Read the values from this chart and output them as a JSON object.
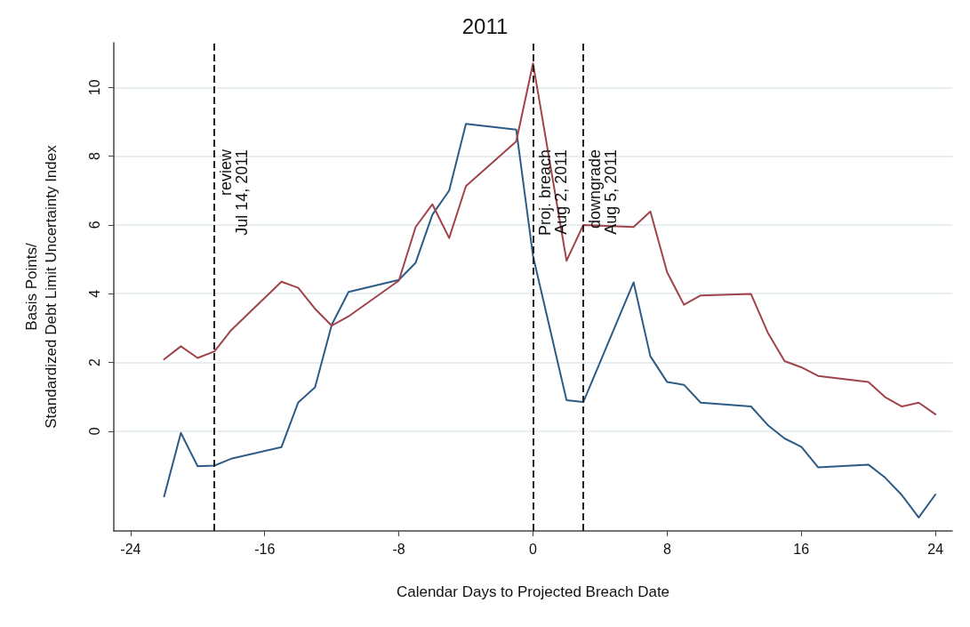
{
  "chart_data": {
    "type": "line",
    "title": "2011",
    "xlabel": "Calendar Days to Projected Breach Date",
    "ylabel": "Basis Points/\nStandardized Debt Limit Uncertainty Index",
    "x": [
      -22,
      -21,
      -20,
      -19,
      -18,
      -15,
      -14,
      -13,
      -12,
      -11,
      -8,
      -7,
      -6,
      -5,
      -4,
      -1,
      0,
      2,
      3,
      6,
      7,
      8,
      9,
      10,
      13,
      14,
      15,
      16,
      17,
      20,
      21,
      22,
      23,
      24
    ],
    "series": [
      {
        "color": "#2d5b86",
        "values": [
          -1.9,
          -0.05,
          -1.02,
          -1.0,
          -0.8,
          -0.46,
          0.84,
          1.28,
          3.1,
          4.05,
          4.4,
          4.9,
          6.3,
          7.0,
          8.94,
          8.77,
          5.1,
          0.9,
          0.85,
          4.33,
          2.18,
          1.43,
          1.35,
          0.83,
          0.72,
          0.18,
          -0.21,
          -0.45,
          -1.05,
          -0.97,
          -1.35,
          -1.86,
          -2.51,
          -1.84
        ]
      },
      {
        "color": "#a0434b",
        "values": [
          2.09,
          2.47,
          2.13,
          2.32,
          2.94,
          4.35,
          4.17,
          3.56,
          3.07,
          3.34,
          4.38,
          5.94,
          6.6,
          5.62,
          7.13,
          8.43,
          10.7,
          4.96,
          6.0,
          5.94,
          6.39,
          4.62,
          3.68,
          3.95,
          3.99,
          2.87,
          2.04,
          1.86,
          1.61,
          1.43,
          0.99,
          0.72,
          0.83,
          0.49
        ]
      }
    ],
    "xlim": [
      -25,
      25
    ],
    "xticks": [
      -24,
      -16,
      -8,
      0,
      8,
      16,
      24
    ],
    "ylim": [
      -2.9,
      11.3
    ],
    "yticks": [
      0,
      2,
      4,
      6,
      8,
      10
    ],
    "grid": "y",
    "marker": "none",
    "line_style": "solid",
    "ref_lines": [
      {
        "axis": "x",
        "value": -19,
        "label": "review\nJul 14, 2011",
        "color": "#222222",
        "line_style": "dashed"
      },
      {
        "axis": "x",
        "value": 0,
        "label": "Proj. breach\nAug 2, 2011",
        "color": "#222222",
        "line_style": "dashed"
      },
      {
        "axis": "x",
        "value": 3,
        "label": "downgrade\nAug 5, 2011",
        "color": "#222222",
        "line_style": "dashed"
      }
    ]
  }
}
